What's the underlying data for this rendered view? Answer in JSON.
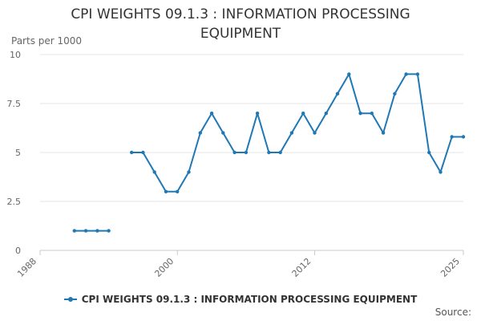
{
  "chart_data": {
    "type": "line",
    "title_line1": "CPI WEIGHTS 09.1.3 : INFORMATION PROCESSING",
    "title_line2": "EQUIPMENT",
    "ylabel": "Parts per 1000",
    "xlabel": "",
    "ylim": [
      0,
      10
    ],
    "xlim": [
      1988,
      2025
    ],
    "y_ticks": [
      "0",
      "2.5",
      "5",
      "7.5",
      "10"
    ],
    "y_tick_values": [
      0,
      2.5,
      5,
      7.5,
      10
    ],
    "x_ticks": [
      "1988",
      "2000",
      "2012",
      "2025"
    ],
    "x_tick_values": [
      1988,
      2000,
      2012,
      2025
    ],
    "grid": true,
    "legend_position": "bottom",
    "series": [
      {
        "name": "CPI WEIGHTS 09.1.3 : INFORMATION PROCESSING EQUIPMENT",
        "color": "#1f78b4",
        "points": [
          [
            1991,
            1
          ],
          [
            1992,
            1
          ],
          [
            1993,
            1
          ],
          [
            1994,
            1
          ],
          [
            1995,
            null
          ],
          [
            1996,
            5
          ],
          [
            1997,
            5
          ],
          [
            1998,
            4
          ],
          [
            1999,
            3
          ],
          [
            2000,
            3
          ],
          [
            2001,
            4
          ],
          [
            2002,
            6
          ],
          [
            2003,
            7
          ],
          [
            2004,
            6
          ],
          [
            2005,
            5
          ],
          [
            2006,
            5
          ],
          [
            2007,
            7
          ],
          [
            2008,
            5
          ],
          [
            2009,
            5
          ],
          [
            2010,
            6
          ],
          [
            2011,
            7
          ],
          [
            2012,
            6
          ],
          [
            2013,
            7
          ],
          [
            2014,
            8
          ],
          [
            2015,
            9
          ],
          [
            2016,
            7
          ],
          [
            2017,
            7
          ],
          [
            2018,
            6
          ],
          [
            2019,
            8
          ],
          [
            2020,
            9
          ],
          [
            2021,
            9
          ],
          [
            2022,
            5
          ],
          [
            2023,
            4
          ],
          [
            2024,
            5.8
          ],
          [
            2025,
            5.8
          ]
        ]
      }
    ]
  },
  "legend": {
    "label": "CPI WEIGHTS 09.1.3 : INFORMATION PROCESSING EQUIPMENT",
    "color": "#1f78b4"
  },
  "source_label": "Source:"
}
